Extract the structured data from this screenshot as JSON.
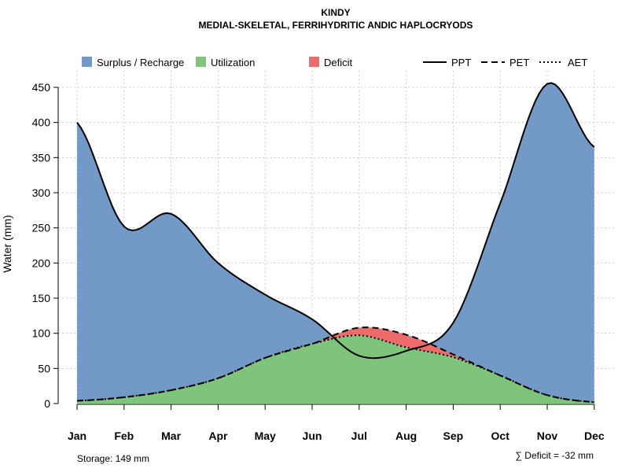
{
  "chart_data": {
    "type": "area",
    "title": "KINDY",
    "subtitle": "MEDIAL-SKELETAL, FERRIHYDRITIC ANDIC HAPLOCRYODS",
    "xlabel": "",
    "ylabel": "Water (mm)",
    "ylim": [
      0,
      470
    ],
    "yticks": [
      0,
      50,
      100,
      150,
      200,
      250,
      300,
      350,
      400,
      450
    ],
    "categories": [
      "Jan",
      "Feb",
      "Mar",
      "Apr",
      "May",
      "Jun",
      "Jul",
      "Aug",
      "Sep",
      "Oct",
      "Nov",
      "Dec"
    ],
    "grid": true,
    "legend": {
      "placement": "top",
      "areas": [
        {
          "name": "Surplus / Recharge",
          "color": "#7399c6"
        },
        {
          "name": "Utilization",
          "color": "#7fc47c"
        },
        {
          "name": "Deficit",
          "color": "#ee6b6b"
        }
      ],
      "lines": [
        {
          "name": "PPT",
          "style": "solid"
        },
        {
          "name": "PET",
          "style": "dashed"
        },
        {
          "name": "AET",
          "style": "dotted"
        }
      ]
    },
    "series": [
      {
        "name": "PPT",
        "values": [
          400,
          252,
          270,
          200,
          155,
          120,
          68,
          75,
          115,
          285,
          455,
          365
        ]
      },
      {
        "name": "PET",
        "values": [
          4,
          9,
          19,
          36,
          65,
          85,
          108,
          98,
          70,
          40,
          12,
          2
        ]
      },
      {
        "name": "AET",
        "values": [
          4,
          9,
          19,
          36,
          65,
          85,
          97,
          80,
          66,
          40,
          12,
          2
        ]
      }
    ],
    "annotations": {
      "storage": "Storage: 149 mm",
      "deficit": "∑ Deficit = -32 mm"
    }
  }
}
